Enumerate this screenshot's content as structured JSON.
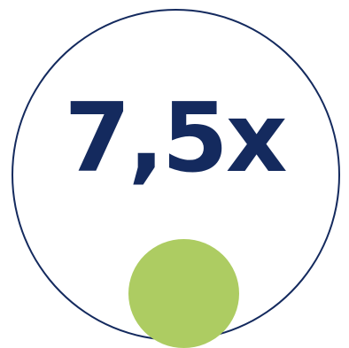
{
  "badge": {
    "value_text": "7,5x",
    "colors": {
      "ring": "#142a5e",
      "text": "#142a5e",
      "dot": "#adcc62",
      "background": "#ffffff"
    }
  }
}
